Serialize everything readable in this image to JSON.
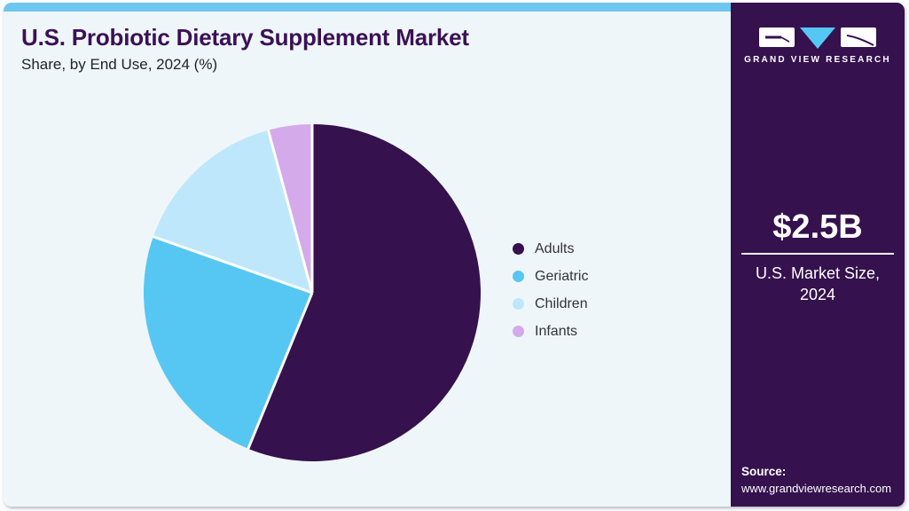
{
  "header": {
    "title": "U.S. Probiotic Dietary Supplement Market",
    "subtitle": "Share, by End Use, 2024 (%)"
  },
  "chart_data": {
    "type": "pie",
    "title": "U.S. Probiotic Dietary Supplement Market Share, by End Use, 2024 (%)",
    "categories": [
      "Adults",
      "Geriatric",
      "Children",
      "Infants"
    ],
    "values": [
      56.2,
      24.2,
      15.4,
      4.2
    ],
    "colors": [
      "#35114e",
      "#56c7f2",
      "#bfe7fb",
      "#d4aaeb"
    ],
    "start_angle_deg": 0,
    "direction": "clockwise",
    "legend_position": "right",
    "separator_color": "#ffffff"
  },
  "sidebar": {
    "brand_name": "GRAND VIEW RESEARCH",
    "market_size_value": "$2.5B",
    "market_size_label": "U.S. Market Size, 2024",
    "source_label": "Source:",
    "source_url": "www.grandviewresearch.com"
  },
  "colors": {
    "accent_bar": "#6fc7ef",
    "main_bg": "#eff6fa",
    "sidebar_bg": "#35114e",
    "title_text": "#3b1156",
    "logo_triangle": "#56c7f2"
  }
}
